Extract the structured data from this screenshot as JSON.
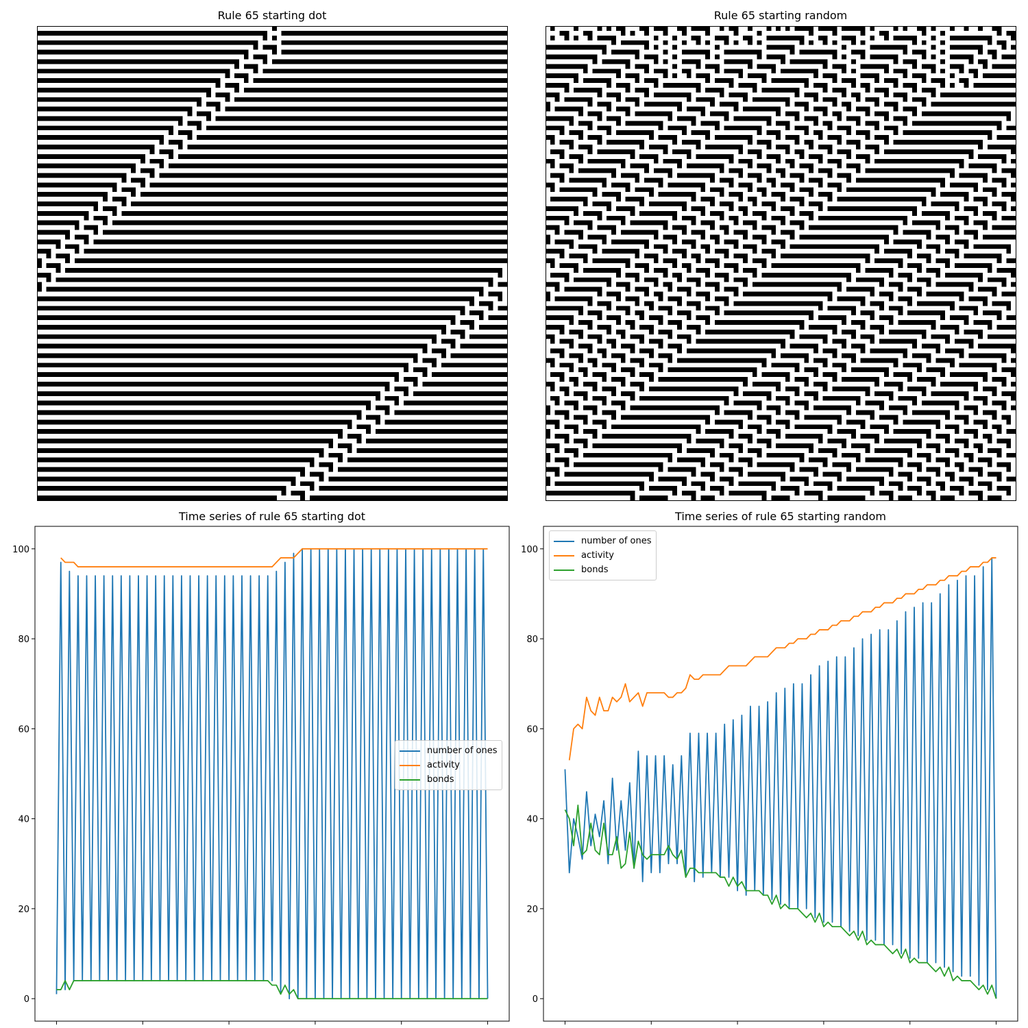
{
  "titles": {
    "dot": "Rule 65 starting dot",
    "random": "Rule 65 starting random",
    "ts_dot": "Time series of rule 65 starting dot",
    "ts_random": "Time series of rule 65 starting random"
  },
  "automaton": {
    "rule": 65,
    "width": 100,
    "steps": 100
  },
  "legend": {
    "ones": "number of ones",
    "activity": "activity",
    "bonds": "bonds"
  },
  "colors": {
    "ones": "#1f77b4",
    "activity": "#ff7f0e",
    "bonds": "#2ca02c"
  },
  "chart_data": [
    {
      "type": "heatmap",
      "title": "Rule 65 starting dot",
      "description_values": "binary cellular automaton grid, rule 65, single seed cell",
      "grid": false
    },
    {
      "type": "heatmap",
      "title": "Rule 65 starting random",
      "description_values": "binary cellular automaton grid, rule 65, random initial row",
      "grid": false
    },
    {
      "type": "line",
      "title": "Time series of rule 65 starting dot",
      "xlim": [
        0,
        100
      ],
      "ylim": [
        0,
        100
      ],
      "xticks": [
        0,
        20,
        40,
        60,
        80,
        100
      ],
      "yticks": [
        0,
        20,
        40,
        60,
        80,
        100
      ],
      "legend_position": "center-right",
      "series": [
        {
          "name": "number of ones",
          "values": [
            1,
            97,
            2,
            95,
            4,
            94,
            4,
            94,
            4,
            94,
            4,
            94,
            4,
            94,
            4,
            94,
            4,
            94,
            4,
            94,
            4,
            94,
            4,
            94,
            4,
            94,
            4,
            94,
            4,
            94,
            4,
            94,
            4,
            94,
            4,
            94,
            4,
            94,
            4,
            94,
            4,
            94,
            4,
            94,
            4,
            94,
            4,
            94,
            4,
            94,
            4,
            95,
            1,
            97,
            0,
            99,
            0,
            100,
            0,
            100,
            0,
            100,
            0,
            100,
            0,
            100,
            0,
            100,
            0,
            100,
            0,
            100,
            0,
            100,
            0,
            100,
            0,
            100,
            0,
            100,
            0,
            100,
            0,
            100,
            0,
            100,
            0,
            100,
            0,
            100,
            0,
            100,
            0,
            100,
            0,
            100,
            0,
            100,
            0,
            100,
            0
          ]
        },
        {
          "name": "activity",
          "x_start": 1,
          "values": [
            98,
            97,
            97,
            97,
            96,
            96,
            96,
            96,
            96,
            96,
            96,
            96,
            96,
            96,
            96,
            96,
            96,
            96,
            96,
            96,
            96,
            96,
            96,
            96,
            96,
            96,
            96,
            96,
            96,
            96,
            96,
            96,
            96,
            96,
            96,
            96,
            96,
            96,
            96,
            96,
            96,
            96,
            96,
            96,
            96,
            96,
            96,
            96,
            96,
            96,
            97,
            98,
            98,
            98,
            98,
            99,
            100,
            100,
            100,
            100,
            100,
            100,
            100,
            100,
            100,
            100,
            100,
            100,
            100,
            100,
            100,
            100,
            100,
            100,
            100,
            100,
            100,
            100,
            100,
            100,
            100,
            100,
            100,
            100,
            100,
            100,
            100,
            100,
            100,
            100,
            100,
            100,
            100,
            100,
            100,
            100,
            100,
            100,
            100,
            100
          ]
        },
        {
          "name": "bonds",
          "values": [
            2,
            2,
            4,
            2,
            4,
            4,
            4,
            4,
            4,
            4,
            4,
            4,
            4,
            4,
            4,
            4,
            4,
            4,
            4,
            4,
            4,
            4,
            4,
            4,
            4,
            4,
            4,
            4,
            4,
            4,
            4,
            4,
            4,
            4,
            4,
            4,
            4,
            4,
            4,
            4,
            4,
            4,
            4,
            4,
            4,
            4,
            4,
            4,
            4,
            4,
            3,
            3,
            1,
            3,
            1,
            2,
            0,
            0,
            0,
            0,
            0,
            0,
            0,
            0,
            0,
            0,
            0,
            0,
            0,
            0,
            0,
            0,
            0,
            0,
            0,
            0,
            0,
            0,
            0,
            0,
            0,
            0,
            0,
            0,
            0,
            0,
            0,
            0,
            0,
            0,
            0,
            0,
            0,
            0,
            0,
            0,
            0,
            0,
            0,
            0,
            0
          ]
        }
      ]
    },
    {
      "type": "line",
      "title": "Time series of rule 65 starting random",
      "xlim": [
        0,
        100
      ],
      "ylim": [
        0,
        100
      ],
      "xticks": [
        0,
        20,
        40,
        60,
        80,
        100
      ],
      "yticks": [
        0,
        20,
        40,
        60,
        80,
        100
      ],
      "legend_position": "upper-left",
      "series": [
        {
          "name": "number of ones",
          "values": [
            51,
            28,
            40,
            36,
            31,
            46,
            34,
            41,
            36,
            44,
            30,
            49,
            33,
            44,
            33,
            48,
            29,
            55,
            26,
            54,
            28,
            54,
            28,
            54,
            30,
            52,
            30,
            54,
            27,
            59,
            26,
            59,
            27,
            59,
            28,
            59,
            27,
            61,
            27,
            62,
            24,
            63,
            23,
            65,
            24,
            65,
            23,
            66,
            22,
            68,
            21,
            69,
            20,
            70,
            20,
            70,
            20,
            72,
            18,
            74,
            17,
            75,
            17,
            76,
            16,
            76,
            15,
            78,
            14,
            80,
            13,
            81,
            13,
            82,
            12,
            82,
            12,
            84,
            10,
            86,
            9,
            87,
            9,
            88,
            8,
            88,
            8,
            90,
            7,
            92,
            6,
            93,
            5,
            94,
            5,
            94,
            3,
            96,
            2,
            98,
            0
          ]
        },
        {
          "name": "activity",
          "x_start": 1,
          "values": [
            53,
            60,
            61,
            60,
            67,
            64,
            63,
            67,
            64,
            64,
            67,
            66,
            67,
            70,
            66,
            67,
            68,
            65,
            68,
            68,
            68,
            68,
            68,
            67,
            67,
            68,
            68,
            69,
            72,
            71,
            71,
            72,
            72,
            72,
            72,
            72,
            73,
            74,
            74,
            74,
            74,
            74,
            75,
            76,
            76,
            76,
            76,
            77,
            78,
            78,
            78,
            79,
            79,
            80,
            80,
            80,
            81,
            81,
            82,
            82,
            82,
            83,
            83,
            84,
            84,
            84,
            85,
            85,
            86,
            86,
            86,
            87,
            87,
            88,
            88,
            88,
            89,
            89,
            90,
            90,
            90,
            91,
            91,
            92,
            92,
            92,
            93,
            93,
            94,
            94,
            94,
            95,
            95,
            96,
            96,
            96,
            97,
            97,
            98,
            98
          ]
        },
        {
          "name": "bonds",
          "values": [
            42,
            40,
            34,
            43,
            32,
            33,
            39,
            33,
            32,
            39,
            32,
            32,
            36,
            29,
            30,
            37,
            29,
            35,
            32,
            31,
            32,
            32,
            32,
            32,
            34,
            32,
            31,
            33,
            27,
            29,
            29,
            28,
            28,
            28,
            28,
            28,
            27,
            27,
            25,
            27,
            25,
            26,
            24,
            24,
            24,
            24,
            23,
            23,
            21,
            23,
            20,
            21,
            20,
            20,
            20,
            19,
            18,
            19,
            17,
            19,
            16,
            17,
            16,
            16,
            16,
            15,
            14,
            15,
            13,
            15,
            12,
            13,
            12,
            12,
            12,
            11,
            10,
            11,
            9,
            11,
            8,
            9,
            8,
            8,
            8,
            7,
            6,
            7,
            5,
            7,
            4,
            5,
            4,
            4,
            4,
            3,
            2,
            3,
            1,
            3,
            0
          ]
        }
      ]
    }
  ]
}
